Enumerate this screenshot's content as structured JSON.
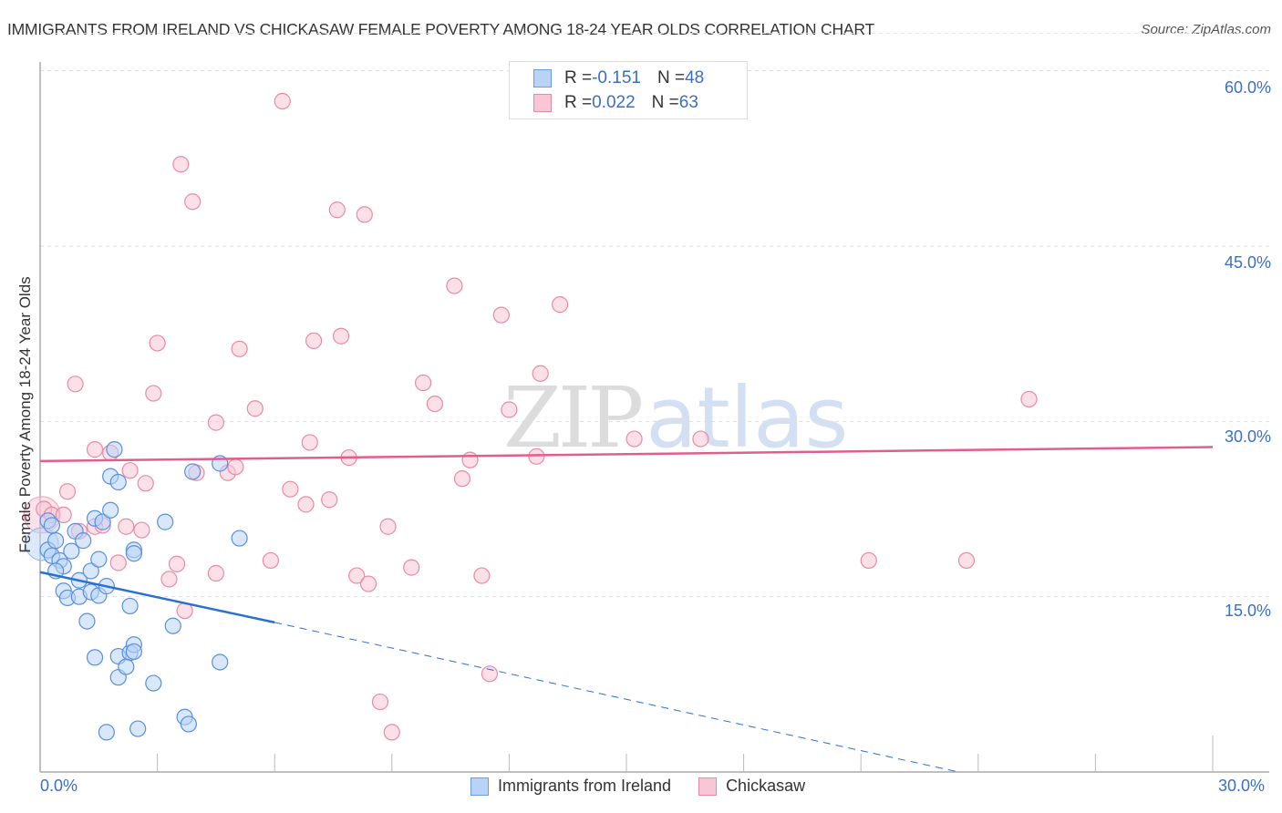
{
  "header": {
    "title": "IMMIGRANTS FROM IRELAND VS CHICKASAW FEMALE POVERTY AMONG 18-24 YEAR OLDS CORRELATION CHART",
    "source": "Source: ZipAtlas.com"
  },
  "watermark": {
    "zip": "ZIP",
    "atlas": "atlas"
  },
  "legend": {
    "series": [
      {
        "name": "Immigrants from Ireland",
        "r_label": "R = ",
        "r_value": "-0.151",
        "n_label": "N = ",
        "n_value": "48",
        "fill": "#b8d3f5",
        "stroke": "#6a9be0"
      },
      {
        "name": "Chickasaw",
        "r_label": "R = ",
        "r_value": "0.022",
        "n_label": "N = ",
        "n_value": "63",
        "fill": "#f9c6d5",
        "stroke": "#e88aa6"
      }
    ]
  },
  "axes": {
    "ylabel": "Female Poverty Among 18-24 Year Olds",
    "y_ticks": [
      "60.0%",
      "45.0%",
      "30.0%",
      "15.0%"
    ],
    "x_ticks": [
      "0.0%",
      "30.0%"
    ]
  },
  "colors": {
    "blue_line": "#2a6fd6",
    "pink_line": "#e05f8a",
    "tick_text": "#3a6fc8",
    "grid": "#dddddd"
  },
  "chart_data": {
    "type": "scatter",
    "title": "IMMIGRANTS FROM IRELAND VS CHICKASAW FEMALE POVERTY AMONG 18-24 YEAR OLDS CORRELATION CHART",
    "xlabel": "",
    "ylabel": "Female Poverty Among 18-24 Year Olds",
    "xlim": [
      0,
      30
    ],
    "ylim": [
      0,
      63
    ],
    "x_tick_labels": [
      "0.0%",
      "30.0%"
    ],
    "y_tick_labels": [
      "15.0%",
      "30.0%",
      "45.0%",
      "60.0%"
    ],
    "grid": true,
    "legend_position": "top-center",
    "series": [
      {
        "name": "Immigrants from Ireland",
        "color": "#6a9be0",
        "R": -0.151,
        "N": 48,
        "trendline": {
          "x": [
            0,
            6.0
          ],
          "y": [
            17.1,
            12.8
          ],
          "extended_dashed_to": [
            23.5,
            0
          ]
        },
        "points": [
          [
            0.2,
            21.5
          ],
          [
            0.2,
            19.0
          ],
          [
            0.3,
            18.5
          ],
          [
            0.4,
            19.8
          ],
          [
            0.5,
            18.1
          ],
          [
            0.6,
            17.6
          ],
          [
            0.6,
            15.5
          ],
          [
            0.4,
            17.2
          ],
          [
            0.7,
            14.9
          ],
          [
            0.9,
            20.6
          ],
          [
            0.8,
            18.9
          ],
          [
            1.0,
            15.0
          ],
          [
            1.0,
            16.4
          ],
          [
            1.1,
            19.8
          ],
          [
            1.3,
            17.2
          ],
          [
            1.4,
            21.7
          ],
          [
            1.6,
            21.4
          ],
          [
            1.3,
            15.4
          ],
          [
            1.5,
            15.1
          ],
          [
            1.5,
            18.2
          ],
          [
            1.2,
            12.9
          ],
          [
            1.7,
            15.9
          ],
          [
            1.8,
            22.4
          ],
          [
            1.9,
            27.6
          ],
          [
            1.8,
            25.3
          ],
          [
            1.4,
            9.8
          ],
          [
            2.0,
            9.9
          ],
          [
            2.3,
            10.2
          ],
          [
            2.0,
            24.8
          ],
          [
            2.0,
            8.1
          ],
          [
            2.2,
            9.0
          ],
          [
            2.4,
            10.9
          ],
          [
            2.4,
            10.3
          ],
          [
            2.4,
            19.0
          ],
          [
            2.4,
            18.7
          ],
          [
            2.3,
            14.2
          ],
          [
            3.2,
            21.4
          ],
          [
            2.9,
            7.6
          ],
          [
            3.4,
            12.5
          ],
          [
            3.7,
            4.7
          ],
          [
            3.8,
            4.1
          ],
          [
            3.9,
            25.7
          ],
          [
            4.6,
            26.4
          ],
          [
            4.6,
            9.4
          ],
          [
            5.1,
            20.0
          ],
          [
            1.7,
            3.4
          ],
          [
            2.5,
            3.7
          ],
          [
            0.3,
            21.1
          ]
        ]
      },
      {
        "name": "Chickasaw",
        "color": "#e88aa6",
        "R": 0.022,
        "N": 63,
        "trendline": {
          "x": [
            0,
            30
          ],
          "y": [
            26.6,
            27.8
          ]
        },
        "points": [
          [
            0.1,
            22.5
          ],
          [
            0.3,
            22.0
          ],
          [
            0.6,
            22.0
          ],
          [
            0.7,
            24.0
          ],
          [
            0.9,
            33.2
          ],
          [
            1.0,
            20.6
          ],
          [
            1.4,
            21.0
          ],
          [
            1.4,
            27.6
          ],
          [
            1.6,
            21.1
          ],
          [
            1.8,
            27.3
          ],
          [
            2.0,
            17.9
          ],
          [
            2.2,
            21.0
          ],
          [
            2.3,
            25.8
          ],
          [
            2.6,
            20.7
          ],
          [
            2.7,
            24.7
          ],
          [
            2.9,
            32.4
          ],
          [
            3.0,
            36.7
          ],
          [
            3.3,
            16.5
          ],
          [
            3.5,
            17.8
          ],
          [
            3.7,
            13.8
          ],
          [
            3.6,
            52.0
          ],
          [
            3.9,
            48.8
          ],
          [
            4.0,
            25.6
          ],
          [
            4.5,
            17.0
          ],
          [
            4.5,
            29.9
          ],
          [
            4.8,
            25.6
          ],
          [
            5.0,
            26.1
          ],
          [
            5.1,
            36.2
          ],
          [
            5.5,
            31.1
          ],
          [
            5.9,
            18.1
          ],
          [
            6.2,
            57.4
          ],
          [
            6.4,
            24.2
          ],
          [
            6.8,
            22.9
          ],
          [
            6.9,
            28.2
          ],
          [
            7.0,
            36.9
          ],
          [
            7.4,
            23.3
          ],
          [
            7.6,
            48.1
          ],
          [
            7.7,
            37.3
          ],
          [
            7.9,
            26.9
          ],
          [
            8.1,
            16.8
          ],
          [
            8.3,
            47.7
          ],
          [
            8.4,
            16.1
          ],
          [
            8.7,
            6.0
          ],
          [
            8.9,
            21.0
          ],
          [
            9.0,
            3.4
          ],
          [
            9.5,
            17.5
          ],
          [
            9.8,
            33.3
          ],
          [
            10.1,
            31.5
          ],
          [
            10.6,
            41.6
          ],
          [
            10.8,
            25.1
          ],
          [
            11.0,
            26.7
          ],
          [
            11.3,
            16.8
          ],
          [
            11.5,
            8.4
          ],
          [
            11.8,
            39.1
          ],
          [
            12.0,
            31.0
          ],
          [
            12.8,
            34.1
          ],
          [
            13.3,
            40.0
          ],
          [
            15.2,
            28.5
          ],
          [
            16.9,
            28.5
          ],
          [
            21.2,
            18.1
          ],
          [
            23.7,
            18.1
          ],
          [
            25.3,
            31.9
          ],
          [
            12.7,
            27.0
          ]
        ]
      }
    ]
  }
}
